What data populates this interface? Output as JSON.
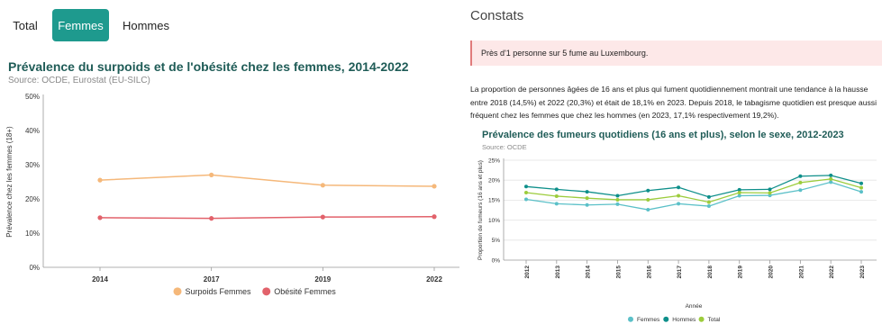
{
  "tabs": [
    {
      "label": "Total",
      "active": false
    },
    {
      "label": "Femmes",
      "active": true
    },
    {
      "label": "Hommes",
      "active": false
    }
  ],
  "left": {
    "title": "Prévalence du surpoids et de l'obésité chez les femmes, 2014-2022",
    "source": "Source: OCDE, Eurostat (EU-SILC)"
  },
  "right": {
    "heading": "Constats",
    "alert": "Près d'1 personne sur 5 fume au Luxembourg.",
    "paragraph": "La proportion de personnes âgées de 16 ans et plus qui fument quotidiennement montrait une tendance à la hausse entre 2018 (14,5%) et 2022 (20,3%) et était de 18,1% en 2023. Depuis 2018, le tabagisme quotidien est presque aussi fréquent chez les femmes que chez les hommes (en 2023, 17,1% respectivement 19,2%).",
    "title": "Prévalence des fumeurs quotidiens (16 ans et plus), selon le sexe, 2012-2023",
    "source": "Source: OCDE"
  },
  "chart_data": [
    {
      "type": "line",
      "title": "Prévalence du surpoids et de l'obésité chez les femmes, 2014-2022",
      "subtitle": "Source: OCDE, Eurostat (EU-SILC)",
      "xlabel": "",
      "ylabel": "Prévalence chez les femmes (18+)",
      "x": [
        "2014",
        "2017",
        "2019",
        "2022"
      ],
      "ylim": [
        0,
        50
      ],
      "yticks": [
        "0%",
        "10%",
        "20%",
        "30%",
        "40%",
        "50%"
      ],
      "grid": false,
      "legend": "bottom",
      "series": [
        {
          "name": "Surpoids Femmes",
          "color": "#f5b87a",
          "values": [
            25.5,
            27.0,
            24.0,
            23.7
          ]
        },
        {
          "name": "Obésité Femmes",
          "color": "#e2626b",
          "values": [
            14.5,
            14.3,
            14.7,
            14.8
          ]
        }
      ]
    },
    {
      "type": "line",
      "title": "Prévalence des fumeurs quotidiens (16 ans et plus), selon le sexe, 2012-2023",
      "subtitle": "Source: OCDE",
      "xlabel": "Année",
      "ylabel": "Proportion de fumeurs (16 ans et plus)",
      "x": [
        "2012",
        "2013",
        "2014",
        "2015",
        "2016",
        "2017",
        "2018",
        "2019",
        "2020",
        "2021",
        "2022",
        "2023"
      ],
      "ylim": [
        0,
        25
      ],
      "yticks": [
        "0%",
        "5%",
        "10%",
        "15%",
        "20%",
        "25%"
      ],
      "grid": true,
      "legend": "bottom",
      "series": [
        {
          "name": "Femmes",
          "color": "#5bc0c8",
          "values": [
            15.2,
            14.1,
            13.8,
            14.0,
            12.6,
            14.1,
            13.5,
            16.1,
            16.2,
            17.5,
            19.5,
            17.1
          ]
        },
        {
          "name": "Hommes",
          "color": "#0e8f8a",
          "values": [
            18.4,
            17.7,
            17.1,
            16.1,
            17.4,
            18.2,
            15.8,
            17.6,
            17.7,
            21.0,
            21.2,
            19.2
          ]
        },
        {
          "name": "Total",
          "color": "#9ccc3c",
          "values": [
            16.9,
            16.0,
            15.5,
            15.1,
            15.1,
            16.1,
            14.5,
            16.9,
            16.8,
            19.4,
            20.3,
            18.1
          ]
        }
      ]
    }
  ]
}
